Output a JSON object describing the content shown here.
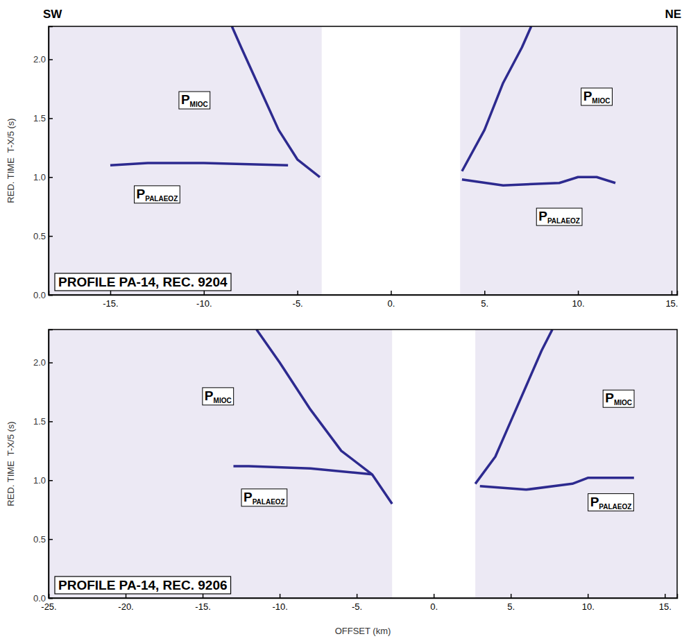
{
  "chart_data": [
    {
      "type": "line",
      "title": "PROFILE PA-14, REC. 9204",
      "side_labels": {
        "left": "SW",
        "right": "NE"
      },
      "y_label": "RED. TIME  T-X/5 (s)",
      "xlim": [
        -18.3,
        15.3
      ],
      "ylim": [
        0,
        2.28
      ],
      "xticks": [
        {
          "value": -15,
          "label": "-15."
        },
        {
          "value": -10,
          "label": "-10."
        },
        {
          "value": -5,
          "label": "-5."
        },
        {
          "value": 0,
          "label": "0."
        },
        {
          "value": 5,
          "label": "5."
        },
        {
          "value": 10,
          "label": "10."
        },
        {
          "value": 15,
          "label": "15."
        }
      ],
      "yticks": [
        {
          "value": 0,
          "label": "0.0"
        },
        {
          "value": 0.5,
          "label": "0.5"
        },
        {
          "value": 1,
          "label": "1.0"
        },
        {
          "value": 1.5,
          "label": "1.5"
        },
        {
          "value": 2,
          "label": "2.0"
        }
      ],
      "gap": [
        -3.7,
        3.7
      ],
      "series": [
        {
          "color": "#2d2a8f",
          "x": [
            -3.8,
            -5,
            -6,
            -7,
            -8,
            -8.5
          ],
          "values": [
            1.0,
            1.15,
            1.4,
            1.75,
            2.1,
            2.28
          ]
        },
        {
          "color": "#2d2a8f",
          "x": [
            -5.5,
            -10,
            -13,
            -15
          ],
          "values": [
            1.1,
            1.12,
            1.12,
            1.1
          ]
        },
        {
          "color": "#2d2a8f",
          "x": [
            3.8,
            5,
            6,
            7,
            7.5
          ],
          "values": [
            1.05,
            1.4,
            1.8,
            2.1,
            2.28
          ]
        },
        {
          "color": "#2d2a8f",
          "x": [
            3.8,
            6,
            9,
            10,
            11,
            12
          ],
          "values": [
            0.98,
            0.93,
            0.95,
            1.0,
            1.0,
            0.95
          ]
        }
      ],
      "annotations": [
        {
          "text": "P",
          "subscript": "MIOC",
          "x": -10.5,
          "y": 1.62
        },
        {
          "text": "P",
          "subscript": "PALAEOZ",
          "x": -12.5,
          "y": 0.82
        },
        {
          "text": "P",
          "subscript": "MIOC",
          "x": 11,
          "y": 1.65
        },
        {
          "text": "P",
          "subscript": "PALAEOZ",
          "x": 9,
          "y": 0.63
        }
      ]
    },
    {
      "type": "line",
      "title": "PROFILE PA-14, REC. 9206",
      "x_label": "OFFSET (km)",
      "y_label": "RED. TIME  T-X/5 (s)",
      "xlim": [
        -25,
        15.8
      ],
      "ylim": [
        0,
        2.28
      ],
      "xticks": [
        {
          "value": -25,
          "label": "-25."
        },
        {
          "value": -20,
          "label": "-20."
        },
        {
          "value": -15,
          "label": "-15."
        },
        {
          "value": -10,
          "label": "-10."
        },
        {
          "value": -5,
          "label": "-5."
        },
        {
          "value": 0,
          "label": "0."
        },
        {
          "value": 5,
          "label": "5."
        },
        {
          "value": 10,
          "label": "10."
        },
        {
          "value": 15,
          "label": "15."
        }
      ],
      "yticks": [
        {
          "value": 0,
          "label": "0.0"
        },
        {
          "value": 0.5,
          "label": "0.5"
        },
        {
          "value": 1,
          "label": "1.0"
        },
        {
          "value": 1.5,
          "label": "1.5"
        },
        {
          "value": 2,
          "label": "2.0"
        }
      ],
      "gap": [
        -2.7,
        2.7
      ],
      "series": [
        {
          "color": "#2d2a8f",
          "x": [
            -2.7,
            -4,
            -6,
            -8,
            -10,
            -11.5
          ],
          "values": [
            0.8,
            1.05,
            1.25,
            1.6,
            2.0,
            2.28
          ]
        },
        {
          "color": "#2d2a8f",
          "x": [
            -4,
            -8,
            -12,
            -13
          ],
          "values": [
            1.05,
            1.1,
            1.12,
            1.12
          ]
        },
        {
          "color": "#2d2a8f",
          "x": [
            2.7,
            4,
            5,
            6,
            7,
            7.7
          ],
          "values": [
            0.97,
            1.2,
            1.5,
            1.8,
            2.1,
            2.28
          ]
        },
        {
          "color": "#2d2a8f",
          "x": [
            3,
            6,
            9,
            10,
            13
          ],
          "values": [
            0.95,
            0.92,
            0.97,
            1.02,
            1.02
          ]
        }
      ],
      "annotations": [
        {
          "text": "P",
          "subscript": "MIOC",
          "x": -14,
          "y": 1.68
        },
        {
          "text": "P",
          "subscript": "PALAEOZ",
          "x": -11,
          "y": 0.82
        },
        {
          "text": "P",
          "subscript": "MIOC",
          "x": 12,
          "y": 1.66
        },
        {
          "text": "P",
          "subscript": "PALAEOZ",
          "x": 11.5,
          "y": 0.78
        }
      ]
    }
  ]
}
